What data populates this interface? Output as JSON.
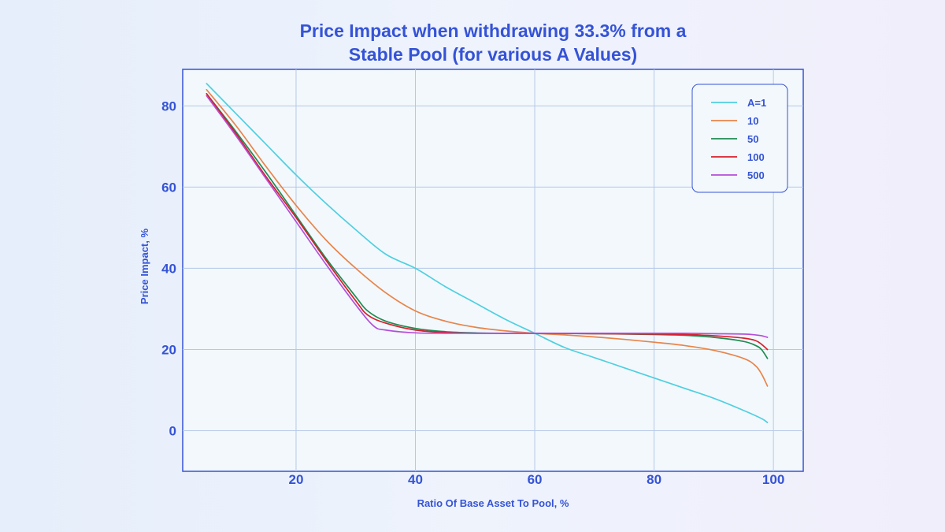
{
  "chart_data": {
    "type": "line",
    "title_line1": "Price Impact when withdrawing 33.3% from a",
    "title_line2": "Stable Pool (for various A Values)",
    "xlabel": "Ratio Of Base Asset To Pool, %",
    "ylabel": "Price Impact, %",
    "xlim": [
      1,
      105
    ],
    "ylim": [
      -10,
      89
    ],
    "xticks": [
      20,
      40,
      60,
      80,
      100
    ],
    "xtick_labels": [
      "20",
      "40",
      "60",
      "80",
      "100"
    ],
    "yticks": [
      0,
      20,
      40,
      60,
      80
    ],
    "ytick_labels": [
      "0",
      "20",
      "40",
      "60",
      "80"
    ],
    "grid": true,
    "legend_position": "top-right",
    "series": [
      {
        "name": "A=1",
        "color": "#4fcfe0",
        "x": [
          5,
          10,
          15,
          20,
          25,
          30,
          35,
          40,
          45,
          50,
          55,
          60,
          65,
          70,
          75,
          80,
          85,
          90,
          95,
          98,
          99
        ],
        "y": [
          85.5,
          78,
          70.5,
          63,
          56,
          49.5,
          43.5,
          40,
          35.5,
          31.5,
          27.5,
          24,
          20.5,
          18,
          15.5,
          13,
          10.5,
          8,
          5,
          3,
          2
        ]
      },
      {
        "name": "10",
        "color": "#e8844a",
        "x": [
          5,
          10,
          15,
          20,
          25,
          30,
          35,
          40,
          45,
          50,
          55,
          60,
          65,
          70,
          75,
          80,
          85,
          90,
          95,
          97,
          98,
          99
        ],
        "y": [
          84,
          75,
          65,
          55.5,
          47,
          40,
          34,
          29.5,
          27,
          25.5,
          24.6,
          24,
          23.6,
          23.1,
          22.5,
          21.8,
          21,
          19.8,
          17.8,
          16,
          14,
          11
        ]
      },
      {
        "name": "50",
        "color": "#1f8a50",
        "x": [
          5,
          10,
          15,
          20,
          25,
          30,
          32,
          35,
          40,
          45,
          50,
          55,
          60,
          70,
          80,
          85,
          90,
          95,
          97,
          98,
          99
        ],
        "y": [
          83,
          73.5,
          63.5,
          53,
          42.5,
          33,
          29.5,
          27,
          25.2,
          24.4,
          24.1,
          24,
          24,
          23.9,
          23.7,
          23.5,
          23,
          22,
          21,
          20,
          17.8
        ]
      },
      {
        "name": "100",
        "color": "#d81f2b",
        "x": [
          5,
          10,
          15,
          20,
          25,
          30,
          32,
          35,
          40,
          45,
          50,
          55,
          60,
          70,
          80,
          85,
          90,
          95,
          97,
          98,
          99
        ],
        "y": [
          83,
          73,
          62.5,
          52.5,
          42,
          32,
          28.5,
          26.5,
          24.8,
          24.2,
          24,
          24,
          24,
          23.9,
          23.8,
          23.7,
          23.4,
          22.8,
          22.2,
          21.3,
          20
        ]
      },
      {
        "name": "500",
        "color": "#b44ed8",
        "x": [
          5,
          10,
          15,
          20,
          25,
          30,
          33,
          35,
          40,
          45,
          50,
          55,
          60,
          70,
          80,
          85,
          90,
          95,
          97,
          98,
          99
        ],
        "y": [
          82.5,
          72.5,
          62,
          51.5,
          41,
          31,
          25.8,
          24.8,
          24.1,
          24,
          24,
          24,
          24,
          24,
          24,
          24,
          23.9,
          23.8,
          23.6,
          23.4,
          23
        ]
      }
    ]
  }
}
